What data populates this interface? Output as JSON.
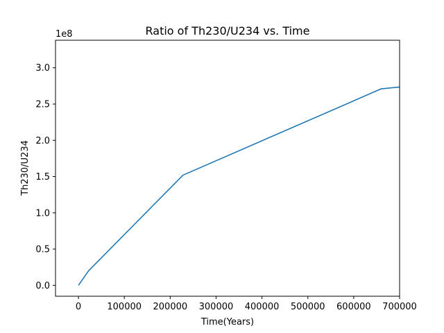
{
  "chart_data": {
    "type": "line",
    "title": "Ratio of Th230/U234 vs. Time",
    "xlabel": "Time(Years)",
    "ylabel": "Th230/U234",
    "y_offset_label": "1e8",
    "xlim": [
      -50000,
      700000
    ],
    "ylim": [
      -15000000,
      338000000
    ],
    "x_ticks": [
      0,
      100000,
      200000,
      300000,
      400000,
      500000,
      600000,
      700000
    ],
    "x_tick_labels": [
      "0",
      "100000",
      "200000",
      "300000",
      "400000",
      "500000",
      "600000",
      "700000"
    ],
    "y_ticks": [
      0,
      50000000,
      100000000,
      150000000,
      200000000,
      250000000,
      300000000
    ],
    "y_tick_labels": [
      "0.0",
      "0.5",
      "1.0",
      "1.5",
      "2.0",
      "2.5",
      "3.0"
    ],
    "grid": false,
    "legend": "none",
    "series": [
      {
        "color": "#1f77b4",
        "x": [
          0,
          22000,
          228000,
          660000,
          700000
        ],
        "y": [
          0,
          20000000,
          152000000,
          271000000,
          273500000
        ]
      }
    ]
  }
}
